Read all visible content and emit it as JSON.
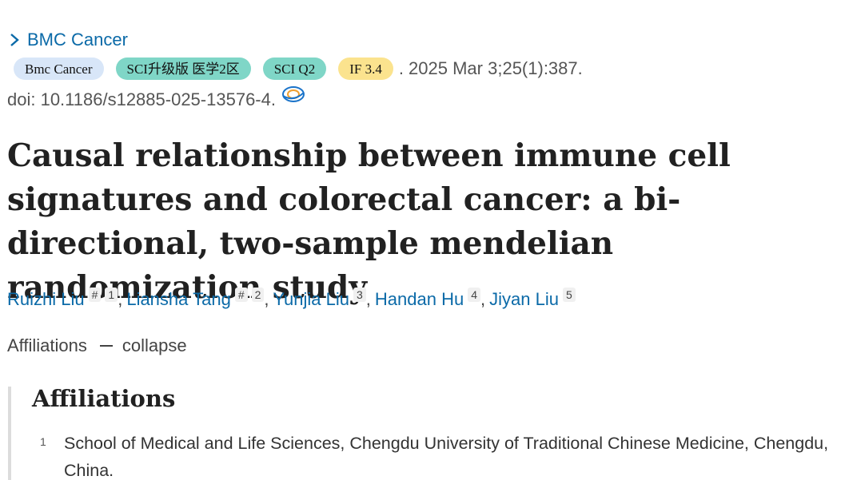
{
  "journal_link": {
    "label": "BMC Cancer",
    "icon": "chevron-right-icon"
  },
  "badges": {
    "journal": "Bmc Cancer",
    "sci": "SCI升级版 医学2区",
    "quartile": "SCI Q2",
    "impact": "IF 3.4"
  },
  "citation": ". 2025 Mar 3;25(1):387.",
  "doi": "doi: 10.1186/s12885-025-13576-4.",
  "title": "Causal relationship between immune cell signatures and colorectal cancer: a bi-directional, two-sample mendelian randomization study",
  "authors": [
    {
      "name": "Ruizhi Liu",
      "marks": [
        "#",
        "1"
      ]
    },
    {
      "name": "Liansha Tang",
      "marks": [
        "#",
        "2"
      ]
    },
    {
      "name": "Yunjia Liu",
      "marks": [
        "3"
      ]
    },
    {
      "name": "Handan Hu",
      "marks": [
        "4"
      ]
    },
    {
      "name": "Jiyan Liu",
      "marks": [
        "5"
      ]
    }
  ],
  "affiliations_toggle": {
    "label": "Affiliations",
    "action": "collapse"
  },
  "affiliations": {
    "heading": "Affiliations",
    "items": [
      {
        "num": "1",
        "text": "School of Medical and Life Sciences, Chengdu University of Traditional Chinese Medicine, Chengdu, China."
      }
    ]
  },
  "colors": {
    "link": "#0b6aa8",
    "badge_journal": "#d8e6f8",
    "badge_sci": "#7fd6c7",
    "badge_if": "#fbe38e"
  }
}
